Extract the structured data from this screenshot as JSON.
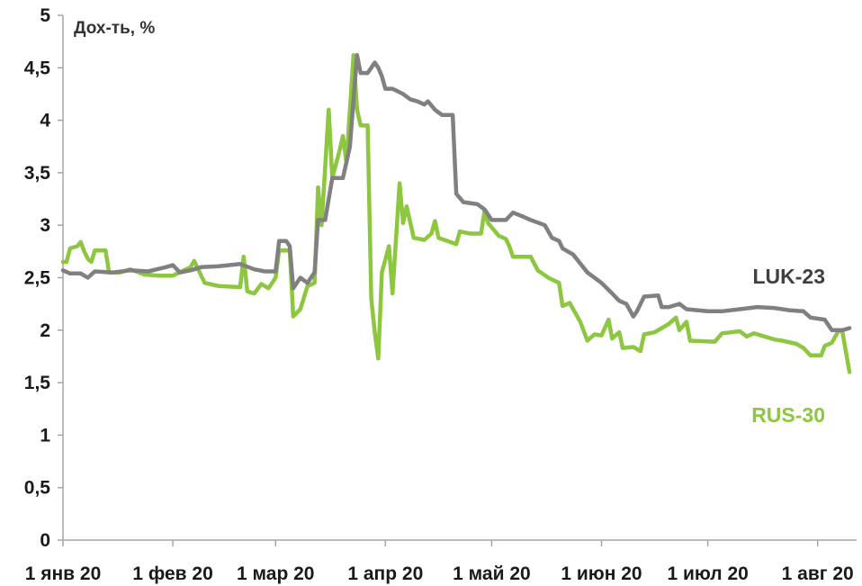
{
  "chart_data": {
    "type": "line",
    "title": "",
    "unit_label": "Дох-ть, %",
    "xlabel": "",
    "ylabel": "",
    "xlim": [
      "2020-01-01",
      "2020-08-12"
    ],
    "ylim": [
      0,
      5
    ],
    "yticks": [
      {
        "value": 0,
        "label": "0"
      },
      {
        "value": 0.5,
        "label": "0,5"
      },
      {
        "value": 1,
        "label": "1"
      },
      {
        "value": 1.5,
        "label": "1,5"
      },
      {
        "value": 2,
        "label": "2"
      },
      {
        "value": 2.5,
        "label": "2,5"
      },
      {
        "value": 3,
        "label": "3"
      },
      {
        "value": 3.5,
        "label": "3,5"
      },
      {
        "value": 4,
        "label": "4"
      },
      {
        "value": 4.5,
        "label": "4,5"
      },
      {
        "value": 5,
        "label": "5"
      }
    ],
    "xticks": [
      {
        "date": "2020-01-01",
        "label": "1 янв 20"
      },
      {
        "date": "2020-02-01",
        "label": "1 фев 20"
      },
      {
        "date": "2020-03-01",
        "label": "1 мар 20"
      },
      {
        "date": "2020-04-01",
        "label": "1 апр 20"
      },
      {
        "date": "2020-05-01",
        "label": "1 май 20"
      },
      {
        "date": "2020-06-01",
        "label": "1 июн 20"
      },
      {
        "date": "2020-07-01",
        "label": "1 июл 20"
      },
      {
        "date": "2020-08-01",
        "label": "1 авг 20"
      }
    ],
    "grid": false,
    "legend": "direct labels at right",
    "series": [
      {
        "name": "LUK-23",
        "color": "#808080",
        "points": [
          [
            "2020-01-01",
            2.57
          ],
          [
            "2020-01-03",
            2.54
          ],
          [
            "2020-01-06",
            2.54
          ],
          [
            "2020-01-08",
            2.5
          ],
          [
            "2020-01-10",
            2.56
          ],
          [
            "2020-01-15",
            2.55
          ],
          [
            "2020-01-20",
            2.57
          ],
          [
            "2020-01-25",
            2.56
          ],
          [
            "2020-01-30",
            2.6
          ],
          [
            "2020-02-01",
            2.62
          ],
          [
            "2020-02-03",
            2.55
          ],
          [
            "2020-02-06",
            2.57
          ],
          [
            "2020-02-09",
            2.6
          ],
          [
            "2020-02-14",
            2.61
          ],
          [
            "2020-02-20",
            2.63
          ],
          [
            "2020-02-24",
            2.58
          ],
          [
            "2020-02-27",
            2.56
          ],
          [
            "2020-03-01",
            2.56
          ],
          [
            "2020-03-02",
            2.85
          ],
          [
            "2020-03-04",
            2.85
          ],
          [
            "2020-03-05",
            2.8
          ],
          [
            "2020-03-06",
            2.4
          ],
          [
            "2020-03-08",
            2.5
          ],
          [
            "2020-03-10",
            2.45
          ],
          [
            "2020-03-12",
            2.55
          ],
          [
            "2020-03-13",
            3.05
          ],
          [
            "2020-03-15",
            3.05
          ],
          [
            "2020-03-16",
            3.25
          ],
          [
            "2020-03-17",
            3.45
          ],
          [
            "2020-03-20",
            3.45
          ],
          [
            "2020-03-21",
            3.6
          ],
          [
            "2020-03-22",
            3.75
          ],
          [
            "2020-03-23",
            4.2
          ],
          [
            "2020-03-24",
            4.62
          ],
          [
            "2020-03-25",
            4.45
          ],
          [
            "2020-03-27",
            4.45
          ],
          [
            "2020-03-28",
            4.5
          ],
          [
            "2020-03-29",
            4.55
          ],
          [
            "2020-03-30",
            4.5
          ],
          [
            "2020-03-31",
            4.42
          ],
          [
            "2020-04-01",
            4.3
          ],
          [
            "2020-04-03",
            4.3
          ],
          [
            "2020-04-06",
            4.25
          ],
          [
            "2020-04-08",
            4.2
          ],
          [
            "2020-04-10",
            4.18
          ],
          [
            "2020-04-12",
            4.15
          ],
          [
            "2020-04-13",
            4.18
          ],
          [
            "2020-04-15",
            4.1
          ],
          [
            "2020-04-17",
            4.05
          ],
          [
            "2020-04-20",
            4.05
          ],
          [
            "2020-04-21",
            3.3
          ],
          [
            "2020-04-23",
            3.22
          ],
          [
            "2020-04-27",
            3.2
          ],
          [
            "2020-04-29",
            3.15
          ],
          [
            "2020-05-01",
            3.05
          ],
          [
            "2020-05-05",
            3.05
          ],
          [
            "2020-05-07",
            3.12
          ],
          [
            "2020-05-10",
            3.08
          ],
          [
            "2020-05-12",
            3.05
          ],
          [
            "2020-05-16",
            3.0
          ],
          [
            "2020-05-18",
            2.88
          ],
          [
            "2020-05-20",
            2.85
          ],
          [
            "2020-05-21",
            2.78
          ],
          [
            "2020-05-24",
            2.72
          ],
          [
            "2020-05-28",
            2.55
          ],
          [
            "2020-06-01",
            2.45
          ],
          [
            "2020-06-04",
            2.35
          ],
          [
            "2020-06-06",
            2.28
          ],
          [
            "2020-06-08",
            2.25
          ],
          [
            "2020-06-10",
            2.13
          ],
          [
            "2020-06-11",
            2.18
          ],
          [
            "2020-06-13",
            2.32
          ],
          [
            "2020-06-17",
            2.33
          ],
          [
            "2020-06-18",
            2.22
          ],
          [
            "2020-06-20",
            2.22
          ],
          [
            "2020-06-23",
            2.25
          ],
          [
            "2020-06-25",
            2.2
          ],
          [
            "2020-07-01",
            2.18
          ],
          [
            "2020-07-05",
            2.18
          ],
          [
            "2020-07-10",
            2.2
          ],
          [
            "2020-07-15",
            2.22
          ],
          [
            "2020-07-20",
            2.21
          ],
          [
            "2020-07-24",
            2.19
          ],
          [
            "2020-07-28",
            2.18
          ],
          [
            "2020-07-30",
            2.12
          ],
          [
            "2020-08-03",
            2.1
          ],
          [
            "2020-08-05",
            2.0
          ],
          [
            "2020-08-08",
            2.0
          ],
          [
            "2020-08-10",
            2.02
          ]
        ]
      },
      {
        "name": "RUS-30",
        "color": "#8dc63f",
        "points": [
          [
            "2020-01-01",
            2.65
          ],
          [
            "2020-01-02",
            2.65
          ],
          [
            "2020-01-03",
            2.78
          ],
          [
            "2020-01-05",
            2.8
          ],
          [
            "2020-01-06",
            2.84
          ],
          [
            "2020-01-07",
            2.75
          ],
          [
            "2020-01-08",
            2.68
          ],
          [
            "2020-01-09",
            2.65
          ],
          [
            "2020-01-10",
            2.76
          ],
          [
            "2020-01-13",
            2.76
          ],
          [
            "2020-01-14",
            2.55
          ],
          [
            "2020-01-17",
            2.55
          ],
          [
            "2020-01-20",
            2.58
          ],
          [
            "2020-01-24",
            2.53
          ],
          [
            "2020-01-28",
            2.52
          ],
          [
            "2020-02-01",
            2.52
          ],
          [
            "2020-02-06",
            2.6
          ],
          [
            "2020-02-07",
            2.66
          ],
          [
            "2020-02-10",
            2.45
          ],
          [
            "2020-02-14",
            2.42
          ],
          [
            "2020-02-20",
            2.41
          ],
          [
            "2020-02-21",
            2.7
          ],
          [
            "2020-02-22",
            2.37
          ],
          [
            "2020-02-24",
            2.35
          ],
          [
            "2020-02-26",
            2.44
          ],
          [
            "2020-02-28",
            2.4
          ],
          [
            "2020-03-01",
            2.5
          ],
          [
            "2020-03-02",
            2.76
          ],
          [
            "2020-03-05",
            2.76
          ],
          [
            "2020-03-06",
            2.13
          ],
          [
            "2020-03-08",
            2.2
          ],
          [
            "2020-03-10",
            2.42
          ],
          [
            "2020-03-12",
            2.45
          ],
          [
            "2020-03-13",
            3.36
          ],
          [
            "2020-03-14",
            3.0
          ],
          [
            "2020-03-16",
            4.1
          ],
          [
            "2020-03-17",
            3.45
          ],
          [
            "2020-03-19",
            3.7
          ],
          [
            "2020-03-20",
            3.85
          ],
          [
            "2020-03-21",
            3.6
          ],
          [
            "2020-03-23",
            4.62
          ],
          [
            "2020-03-24",
            4.1
          ],
          [
            "2020-03-25",
            3.95
          ],
          [
            "2020-03-26",
            3.95
          ],
          [
            "2020-03-27",
            3.95
          ],
          [
            "2020-03-28",
            2.3
          ],
          [
            "2020-03-29",
            1.98
          ],
          [
            "2020-03-30",
            1.73
          ],
          [
            "2020-03-31",
            2.55
          ],
          [
            "2020-04-02",
            2.8
          ],
          [
            "2020-04-03",
            2.35
          ],
          [
            "2020-04-05",
            3.4
          ],
          [
            "2020-04-06",
            3.02
          ],
          [
            "2020-04-07",
            3.18
          ],
          [
            "2020-04-09",
            2.88
          ],
          [
            "2020-04-12",
            2.86
          ],
          [
            "2020-04-14",
            2.92
          ],
          [
            "2020-04-15",
            3.04
          ],
          [
            "2020-04-16",
            2.88
          ],
          [
            "2020-04-21",
            2.82
          ],
          [
            "2020-04-22",
            2.94
          ],
          [
            "2020-04-25",
            2.92
          ],
          [
            "2020-04-28",
            2.92
          ],
          [
            "2020-04-29",
            3.14
          ],
          [
            "2020-04-30",
            3.02
          ],
          [
            "2020-05-03",
            2.9
          ],
          [
            "2020-05-05",
            2.87
          ],
          [
            "2020-05-06",
            2.8
          ],
          [
            "2020-05-07",
            2.7
          ],
          [
            "2020-05-12",
            2.7
          ],
          [
            "2020-05-14",
            2.57
          ],
          [
            "2020-05-17",
            2.5
          ],
          [
            "2020-05-20",
            2.45
          ],
          [
            "2020-05-21",
            2.23
          ],
          [
            "2020-05-23",
            2.26
          ],
          [
            "2020-05-24",
            2.2
          ],
          [
            "2020-05-26",
            2.08
          ],
          [
            "2020-05-28",
            1.9
          ],
          [
            "2020-05-30",
            1.96
          ],
          [
            "2020-06-01",
            1.95
          ],
          [
            "2020-06-03",
            2.1
          ],
          [
            "2020-06-04",
            1.92
          ],
          [
            "2020-06-06",
            1.98
          ],
          [
            "2020-06-07",
            1.83
          ],
          [
            "2020-06-10",
            1.84
          ],
          [
            "2020-06-12",
            1.8
          ],
          [
            "2020-06-13",
            1.96
          ],
          [
            "2020-06-16",
            1.98
          ],
          [
            "2020-06-18",
            2.02
          ],
          [
            "2020-06-20",
            2.06
          ],
          [
            "2020-06-22",
            2.12
          ],
          [
            "2020-06-23",
            2.0
          ],
          [
            "2020-06-25",
            2.08
          ],
          [
            "2020-06-26",
            1.9
          ],
          [
            "2020-07-03",
            1.89
          ],
          [
            "2020-07-05",
            1.97
          ],
          [
            "2020-07-10",
            1.99
          ],
          [
            "2020-07-12",
            1.94
          ],
          [
            "2020-07-14",
            1.97
          ],
          [
            "2020-07-18",
            1.93
          ],
          [
            "2020-07-20",
            1.91
          ],
          [
            "2020-07-22",
            1.9
          ],
          [
            "2020-07-26",
            1.87
          ],
          [
            "2020-07-28",
            1.83
          ],
          [
            "2020-07-30",
            1.76
          ],
          [
            "2020-08-02",
            1.76
          ],
          [
            "2020-08-03",
            1.85
          ],
          [
            "2020-08-05",
            1.88
          ],
          [
            "2020-08-07",
            2.0
          ],
          [
            "2020-08-08",
            1.98
          ],
          [
            "2020-08-10",
            1.6
          ]
        ]
      }
    ]
  }
}
